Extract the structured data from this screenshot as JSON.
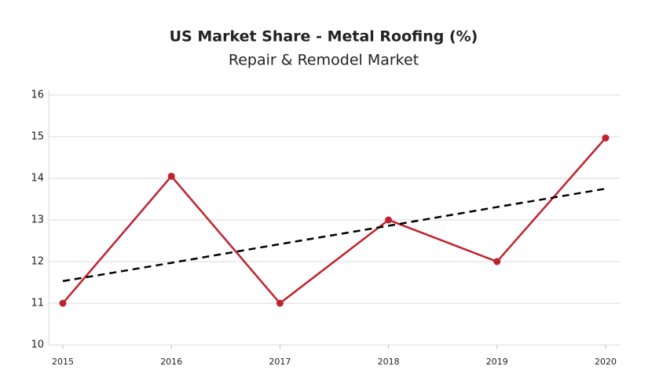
{
  "chart_data": {
    "type": "line",
    "title": "US Market Share - Metal Roofing (%)",
    "subtitle": "Repair & Remodel Market",
    "categories": [
      "2015",
      "2016",
      "2017",
      "2018",
      "2019",
      "2020"
    ],
    "series": [
      {
        "color": "#c0232f",
        "values": [
          11,
          14.05,
          11,
          13,
          12,
          14.97
        ],
        "markers": true,
        "dashed": false
      },
      {
        "color": "#000000",
        "values": [
          11.53,
          11.97,
          12.42,
          12.86,
          13.31,
          13.75
        ],
        "markers": false,
        "dashed": true
      }
    ],
    "ylim": [
      10,
      16
    ],
    "yticks": [
      10,
      11,
      12,
      13,
      14,
      15,
      16
    ],
    "grid": true
  }
}
